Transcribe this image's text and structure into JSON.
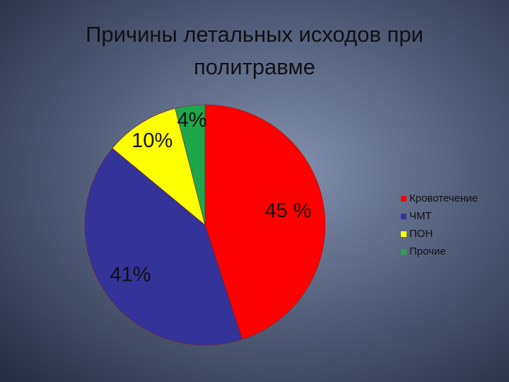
{
  "chart_data": {
    "type": "pie",
    "title": "Причины летальных исходов при политравме",
    "categories": [
      "Кровотечение",
      "ЧМТ",
      "ПОН",
      "Прочие"
    ],
    "values": [
      45,
      41,
      10,
      4
    ],
    "value_labels": [
      "45 %",
      "41%",
      "10%",
      "4%"
    ],
    "colors": [
      "#ff0000",
      "#333399",
      "#ffff00",
      "#1fa64a"
    ],
    "legend": "right"
  }
}
